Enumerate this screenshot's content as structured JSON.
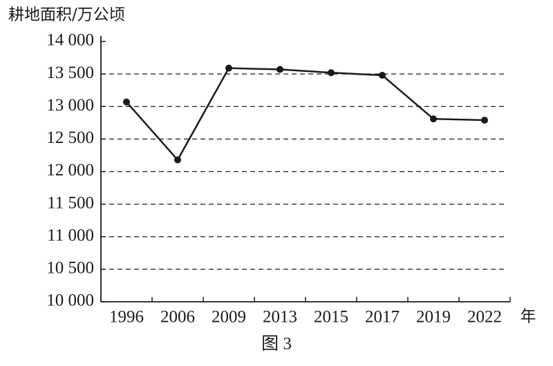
{
  "chart_data": {
    "type": "line",
    "y_label": "耕地面积/万公顷",
    "x_label": "年",
    "caption": "图 3",
    "categories": [
      "1996",
      "2006",
      "2009",
      "2013",
      "2015",
      "2017",
      "2019",
      "2022"
    ],
    "values": [
      13070,
      12180,
      13590,
      13570,
      13520,
      13480,
      12810,
      12790
    ],
    "color": "#1a1a1a",
    "ylim": [
      10000,
      14000
    ],
    "yticks": [
      {
        "value": 10000,
        "label": "10 000"
      },
      {
        "value": 10500,
        "label": "10 500"
      },
      {
        "value": 11000,
        "label": "11 000"
      },
      {
        "value": 11500,
        "label": "11 500"
      },
      {
        "value": 12000,
        "label": "12 000"
      },
      {
        "value": 12500,
        "label": "12 500"
      },
      {
        "value": 13000,
        "label": "13 000"
      },
      {
        "value": 13500,
        "label": "13 500"
      },
      {
        "value": 14000,
        "label": "14 000"
      }
    ],
    "grid": true
  }
}
